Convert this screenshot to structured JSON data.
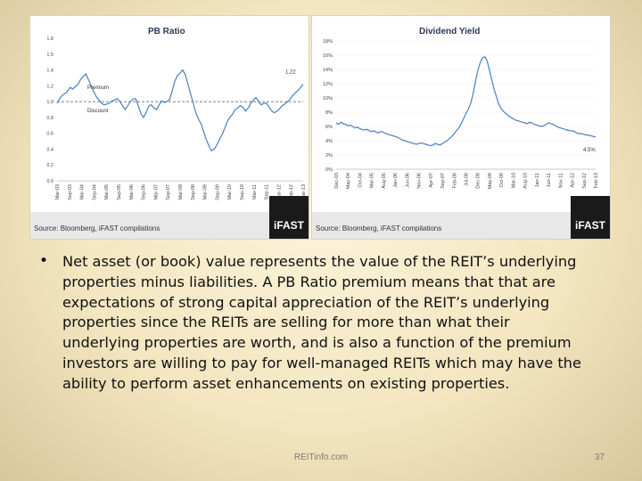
{
  "chart_data": [
    {
      "type": "line",
      "title": "PB Ratio",
      "ylim": [
        0.0,
        1.8
      ],
      "yticks": [
        "0.0",
        "0.2",
        "0.4",
        "0.6",
        "0.8",
        "1.0",
        "1.2",
        "1.4",
        "1.5",
        "1.8"
      ],
      "xticks": [
        "Mar-03",
        "Sep-03",
        "Mar-04",
        "Sep-04",
        "Mar-05",
        "Sep-05",
        "Mar-06",
        "Sep-06",
        "Mar-07",
        "Sep-07",
        "Mar-08",
        "Sep-08",
        "Mar-09",
        "Sep-09",
        "Mar-10",
        "Sep-10",
        "Mar-11",
        "Sep-11",
        "Mar-12",
        "Sep-12",
        "Mar-13"
      ],
      "series": [
        {
          "values": [
            0.98,
            1.04,
            1.08,
            1.1,
            1.13,
            1.18,
            1.16,
            1.19,
            1.22,
            1.28,
            1.32,
            1.35,
            1.28,
            1.2,
            1.13,
            1.06,
            1.02,
            0.98,
            0.96,
            0.97,
            0.98,
            1.01,
            1.02,
            1.04,
            1.0,
            0.95,
            0.9,
            0.95,
            1.0,
            1.03,
            1.04,
            0.95,
            0.85,
            0.8,
            0.86,
            0.94,
            0.96,
            0.92,
            0.9,
            0.96,
            1.01,
            0.99,
            1.0,
            1.03,
            1.14,
            1.26,
            1.33,
            1.36,
            1.4,
            1.34,
            1.22,
            1.1,
            0.98,
            0.86,
            0.78,
            0.72,
            0.62,
            0.52,
            0.44,
            0.38,
            0.4,
            0.45,
            0.52,
            0.58,
            0.66,
            0.75,
            0.8,
            0.84,
            0.9,
            0.92,
            0.95,
            0.93,
            0.88,
            0.92,
            0.98,
            1.02,
            1.05,
            1.0,
            0.96,
            0.98,
            0.98,
            0.93,
            0.88,
            0.86,
            0.88,
            0.91,
            0.95,
            0.97,
            1.0,
            1.03,
            1.08,
            1.11,
            1.14,
            1.18,
            1.22
          ]
        }
      ],
      "reference_line": {
        "value": 1.0
      },
      "annotations": [
        "Premium",
        "Discount",
        "1.22"
      ],
      "source": "Source: Bloomberg, iFAST compilations",
      "logo": "iFAST"
    },
    {
      "type": "line",
      "title": "Dividend Yield",
      "ylim": [
        0,
        18
      ],
      "yticks": [
        "0%",
        "2%",
        "4%",
        "6%",
        "8%",
        "10%",
        "12%",
        "14%",
        "16%",
        "18%"
      ],
      "xticks": [
        "Dec-03",
        "May-04",
        "Oct-04",
        "Mar-05",
        "Aug-05",
        "Jan-06",
        "Jun-06",
        "Nov-06",
        "Apr-07",
        "Sep-07",
        "Feb-08",
        "Jul-08",
        "Dec-08",
        "May-09",
        "Oct-09",
        "Mar-10",
        "Aug-10",
        "Jan-11",
        "Jun-11",
        "Nov-11",
        "Apr-12",
        "Sep-12",
        "Feb-13"
      ],
      "series": [
        {
          "values": [
            6.5,
            6.3,
            6.6,
            6.4,
            6.3,
            6.1,
            6.2,
            6.0,
            5.8,
            5.9,
            5.7,
            5.6,
            5.5,
            5.6,
            5.4,
            5.3,
            5.4,
            5.2,
            5.1,
            5.3,
            5.2,
            5.0,
            4.9,
            4.8,
            4.7,
            4.6,
            4.5,
            4.3,
            4.1,
            4.0,
            3.9,
            3.8,
            3.7,
            3.6,
            3.5,
            3.6,
            3.7,
            3.6,
            3.5,
            3.4,
            3.3,
            3.4,
            3.6,
            3.5,
            3.4,
            3.6,
            3.8,
            4.0,
            4.3,
            4.6,
            5.0,
            5.4,
            5.8,
            6.4,
            7.1,
            7.8,
            8.4,
            9.2,
            10.5,
            12.2,
            13.8,
            14.9,
            15.6,
            15.8,
            15.2,
            13.9,
            12.5,
            11.2,
            10.1,
            9.1,
            8.5,
            8.1,
            7.8,
            7.5,
            7.3,
            7.1,
            6.9,
            6.8,
            6.7,
            6.6,
            6.5,
            6.4,
            6.6,
            6.5,
            6.3,
            6.2,
            6.1,
            6.0,
            6.1,
            6.3,
            6.5,
            6.4,
            6.3,
            6.1,
            5.9,
            5.8,
            5.7,
            5.6,
            5.5,
            5.4,
            5.4,
            5.3,
            5.1,
            5.0,
            5.0,
            4.9,
            4.8,
            4.8,
            4.7,
            4.6,
            4.5
          ]
        }
      ],
      "annotations": [
        "4.5%"
      ],
      "source": "Source: Bloomberg, iFAST compilations",
      "logo": "iFAST"
    }
  ],
  "bullet": "Net asset (or book) value represents the value of the REIT’s underlying properties minus liabilities. A PB Ratio premium means that that are expectations of strong capital appreciation of the REIT’s underlying properties since the REITs are selling for more than what their underlying properties are worth, and is also a function of the premium investors are willing to pay for well-managed REITs which may have the ability to perform asset enhancements on existing properties.",
  "footer": {
    "site": "REITinfo.com",
    "page": "37"
  }
}
